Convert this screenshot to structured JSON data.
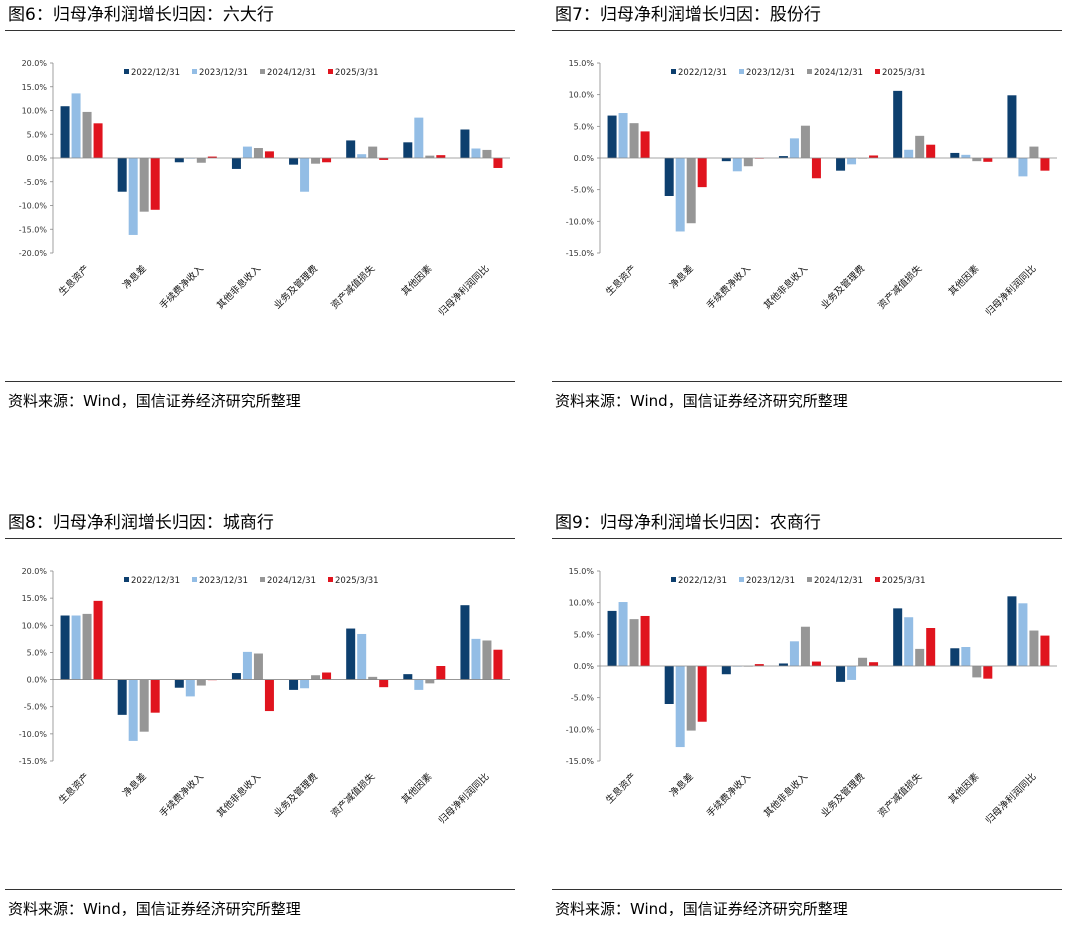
{
  "source_text": "资料来源：Wind，国信证券经济研究所整理",
  "colors": [
    "#0d3f6e",
    "#93bde5",
    "#969696",
    "#e0141e"
  ],
  "chart_data": [
    {
      "type": "bar",
      "title": "图6：归母净利润增长归因：六大行",
      "categories": [
        "生息资产",
        "净息差",
        "手续费净收入",
        "其他非息收入",
        "业务及管理费",
        "资产减值损失",
        "其他因素",
        "归母净利润同比"
      ],
      "ylim": [
        -20,
        20
      ],
      "yticks": [
        -20,
        -15,
        -10,
        -5,
        0,
        5,
        10,
        15,
        20
      ],
      "tick_labels": [
        "-20.0%",
        "-15.0%",
        "-10.0%",
        "-5.0%",
        "0.0%",
        "5.0%",
        "10.0%",
        "15.0%",
        "20.0%"
      ],
      "legend_position": "top-center",
      "series": [
        {
          "name": "2022/12/31",
          "values": [
            10.9,
            -7.1,
            -0.9,
            -2.3,
            -1.4,
            3.7,
            3.3,
            6.0
          ]
        },
        {
          "name": "2023/12/31",
          "values": [
            13.6,
            -16.2,
            0.0,
            2.4,
            -7.1,
            0.8,
            8.5,
            2.0
          ]
        },
        {
          "name": "2024/12/31",
          "values": [
            9.7,
            -11.3,
            -1.0,
            2.1,
            -1.2,
            2.4,
            0.5,
            1.7
          ]
        },
        {
          "name": "2025/3/31",
          "values": [
            7.3,
            -10.9,
            0.3,
            1.4,
            -0.9,
            -0.4,
            0.6,
            -2.1
          ]
        }
      ]
    },
    {
      "type": "bar",
      "title": "图7：归母净利润增长归因：股份行",
      "categories": [
        "生息资产",
        "净息差",
        "手续费净收入",
        "其他非息收入",
        "业务及管理费",
        "资产减值损失",
        "其他因素",
        "归母净利润同比"
      ],
      "ylim": [
        -15,
        15
      ],
      "yticks": [
        -15,
        -10,
        -5,
        0,
        5,
        10,
        15
      ],
      "tick_labels": [
        "-15.0%",
        "-10.0%",
        "-5.0%",
        "0.0%",
        "5.0%",
        "10.0%",
        "15.0%"
      ],
      "legend_position": "top-center",
      "series": [
        {
          "name": "2022/12/31",
          "values": [
            6.7,
            -6.0,
            -0.5,
            0.3,
            -2.0,
            10.6,
            0.8,
            9.9
          ]
        },
        {
          "name": "2023/12/31",
          "values": [
            7.1,
            -11.6,
            -2.1,
            3.1,
            -1.0,
            1.3,
            0.5,
            -2.9
          ]
        },
        {
          "name": "2024/12/31",
          "values": [
            5.5,
            -10.3,
            -1.3,
            5.1,
            0.0,
            3.5,
            -0.5,
            1.8
          ]
        },
        {
          "name": "2025/3/31",
          "values": [
            4.2,
            -4.6,
            0.0,
            -3.2,
            0.4,
            2.1,
            -0.6,
            -2.0
          ]
        }
      ]
    },
    {
      "type": "bar",
      "title": "图8：归母净利润增长归因：城商行",
      "categories": [
        "生息资产",
        "净息差",
        "手续费净收入",
        "其他非息收入",
        "业务及管理费",
        "资产减值损失",
        "其他因素",
        "归母净利润同比"
      ],
      "ylim": [
        -15,
        20
      ],
      "yticks": [
        -15,
        -10,
        -5,
        0,
        5,
        10,
        15,
        20
      ],
      "tick_labels": [
        "-15.0%",
        "-10.0%",
        "-5.0%",
        "0.0%",
        "5.0%",
        "10.0%",
        "15.0%",
        "20.0%"
      ],
      "legend_position": "top-center",
      "series": [
        {
          "name": "2022/12/31",
          "values": [
            11.8,
            -6.5,
            -1.5,
            1.2,
            -1.9,
            9.4,
            1.0,
            13.7
          ]
        },
        {
          "name": "2023/12/31",
          "values": [
            11.8,
            -11.3,
            -3.1,
            5.1,
            -1.6,
            8.4,
            -1.9,
            7.5
          ]
        },
        {
          "name": "2024/12/31",
          "values": [
            12.1,
            -9.6,
            -1.1,
            4.8,
            0.8,
            0.5,
            -0.7,
            7.2
          ]
        },
        {
          "name": "2025/3/31",
          "values": [
            14.5,
            -6.1,
            0.0,
            -5.8,
            1.3,
            -1.4,
            2.5,
            5.5
          ]
        }
      ]
    },
    {
      "type": "bar",
      "title": "图9：归母净利润增长归因：农商行",
      "categories": [
        "生息资产",
        "净息差",
        "手续费净收入",
        "其他非息收入",
        "业务及管理费",
        "资产减值损失",
        "其他因素",
        "归母净利润同比"
      ],
      "ylim": [
        -15,
        15
      ],
      "yticks": [
        -15,
        -10,
        -5,
        0,
        5,
        10,
        15
      ],
      "tick_labels": [
        "-15.0%",
        "-10.0%",
        "-5.0%",
        "0.0%",
        "5.0%",
        "10.0%",
        "15.0%"
      ],
      "legend_position": "top-center",
      "series": [
        {
          "name": "2022/12/31",
          "values": [
            8.7,
            -6.0,
            -1.3,
            0.4,
            -2.5,
            9.1,
            2.8,
            11.0
          ]
        },
        {
          "name": "2023/12/31",
          "values": [
            10.1,
            -12.8,
            0.0,
            3.9,
            -2.2,
            7.7,
            3.0,
            9.9
          ]
        },
        {
          "name": "2024/12/31",
          "values": [
            7.4,
            -10.2,
            0.0,
            6.2,
            1.3,
            2.7,
            -1.8,
            5.6
          ]
        },
        {
          "name": "2025/3/31",
          "values": [
            7.9,
            -8.8,
            0.3,
            0.7,
            0.6,
            6.0,
            -2.0,
            4.8
          ]
        }
      ]
    }
  ]
}
